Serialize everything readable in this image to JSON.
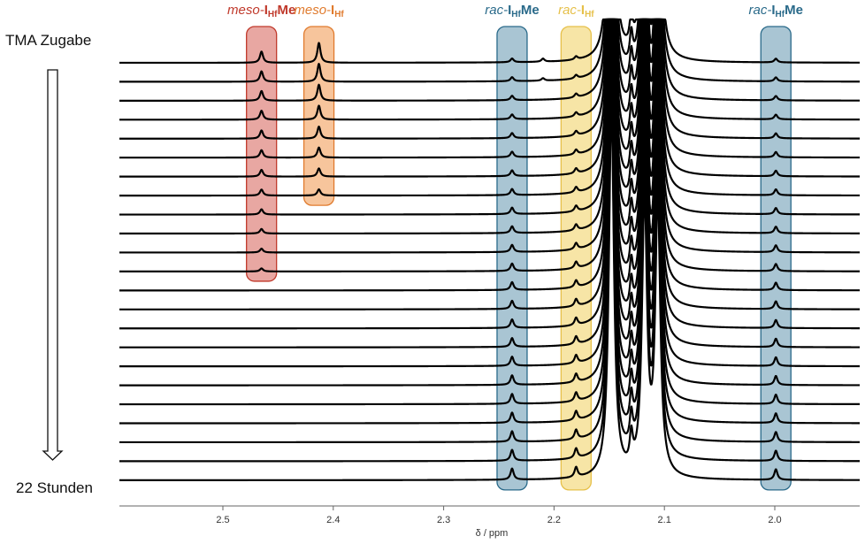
{
  "chart_data": {
    "type": "line",
    "title": "",
    "xlabel": "δ / ppm",
    "ylabel": "",
    "xlim": [
      2.59,
      1.93
    ],
    "x_reversed": true,
    "x_ticks": [
      "2.5",
      "2.4",
      "2.3",
      "2.2",
      "2.1",
      "2.0"
    ],
    "grid": false,
    "time_start_label": "TMA Zugabe",
    "time_end_label": "22 Stunden",
    "spectra_count": 23,
    "regions": [
      {
        "prefix": "meso-",
        "symbol": "I",
        "subscript": "Hf",
        "suffix": "Me",
        "center_ppm": 2.465,
        "color": "#c0392b",
        "fill": "#e8a7a2",
        "present_in_spectra": 12
      },
      {
        "prefix": "meso-",
        "symbol": "I",
        "subscript": "Hf",
        "suffix": "",
        "center_ppm": 2.413,
        "color": "#e07b2e",
        "fill": "#f7c59c",
        "present_in_spectra": 8
      },
      {
        "prefix": "rac-",
        "symbol": "I",
        "subscript": "Hf",
        "suffix": "Me",
        "center_ppm": 2.238,
        "color": "#2a6a8a",
        "fill": "#a9c5d3",
        "present_in_spectra": 23
      },
      {
        "prefix": "rac-",
        "symbol": "I",
        "subscript": "Hf",
        "suffix": "",
        "center_ppm": 2.18,
        "color": "#e6c04a",
        "fill": "#f7e5a6",
        "present_in_spectra": 23
      },
      {
        "prefix": "rac-",
        "symbol": "I",
        "subscript": "Hf",
        "suffix": "Me",
        "center_ppm": 1.999,
        "color": "#2a6a8a",
        "fill": "#a9c5d3",
        "present_in_spectra": 23
      }
    ],
    "peaks": [
      {
        "ppm": 2.465,
        "spectra": [
          1,
          12
        ],
        "height": [
          0.9,
          0.25
        ]
      },
      {
        "ppm": 2.413,
        "spectra": [
          1,
          8
        ],
        "height": [
          1.6,
          0.5
        ]
      },
      {
        "ppm": 2.21,
        "spectra": [
          1,
          2
        ],
        "height": [
          0.25,
          0.2
        ]
      },
      {
        "ppm": 2.238,
        "spectra": [
          1,
          23
        ],
        "height": [
          0.3,
          0.9
        ]
      },
      {
        "ppm": 2.18,
        "spectra": [
          1,
          23
        ],
        "height": [
          0.25,
          0.8
        ]
      },
      {
        "ppm": 1.999,
        "spectra": [
          1,
          23
        ],
        "height": [
          0.3,
          0.85
        ]
      },
      {
        "ppm": 2.148,
        "spectra": [
          1,
          23
        ],
        "height": [
          30,
          30
        ]
      },
      {
        "ppm": 2.13,
        "spectra": [
          1,
          23
        ],
        "height": [
          2.4,
          2.4
        ]
      },
      {
        "ppm": 2.118,
        "spectra": [
          1,
          23
        ],
        "height": [
          22,
          22
        ]
      },
      {
        "ppm": 2.106,
        "spectra": [
          1,
          23
        ],
        "height": [
          22,
          22
        ]
      }
    ]
  }
}
